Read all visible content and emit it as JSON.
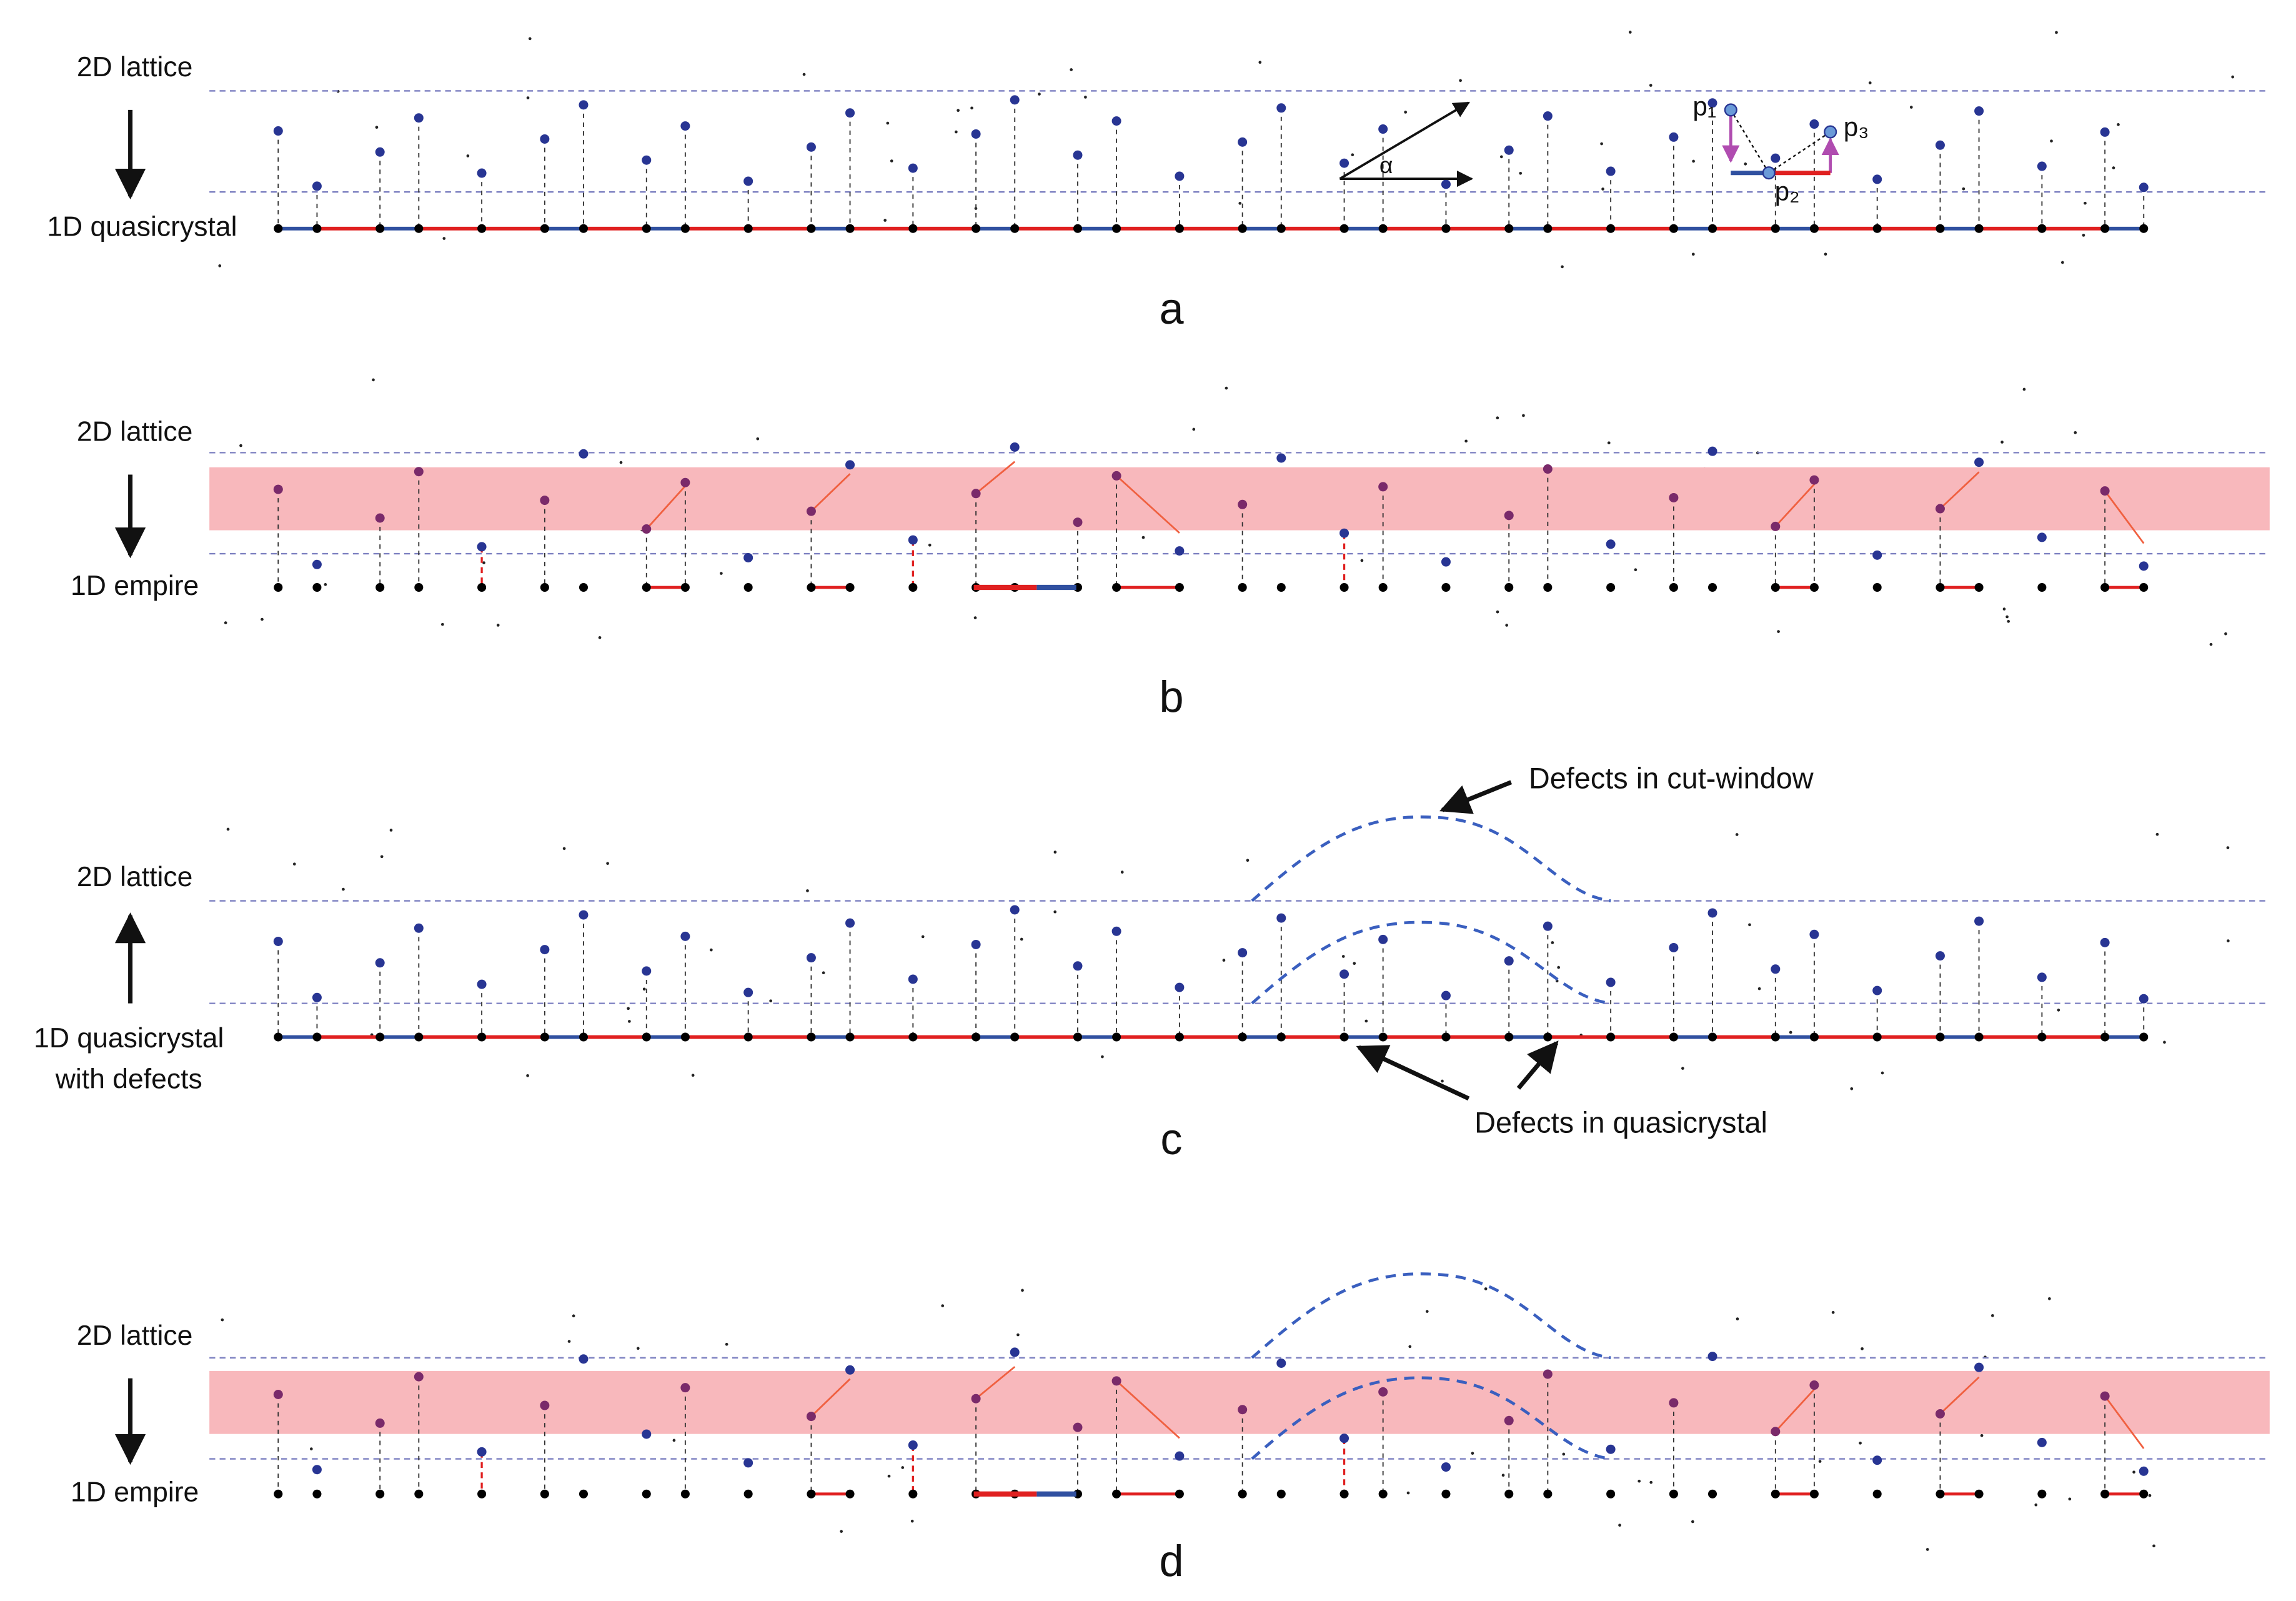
{
  "panels": [
    {
      "label": "a",
      "top_label": "2D lattice",
      "bottom_label": "1D quasicrystal",
      "angle": "α",
      "points": [
        "p₁",
        "p₂",
        "p₃"
      ]
    },
    {
      "label": "b",
      "top_label": "2D lattice",
      "bottom_label": "1D empire"
    },
    {
      "label": "c",
      "top_label": "2D lattice",
      "bottom_label": [
        "1D quasicrystal",
        "with defects"
      ],
      "callouts": [
        "Defects in cut-window",
        "Defects in quasicrystal"
      ]
    },
    {
      "label": "d",
      "top_label": "2D lattice",
      "bottom_label": "1D empire"
    }
  ]
}
